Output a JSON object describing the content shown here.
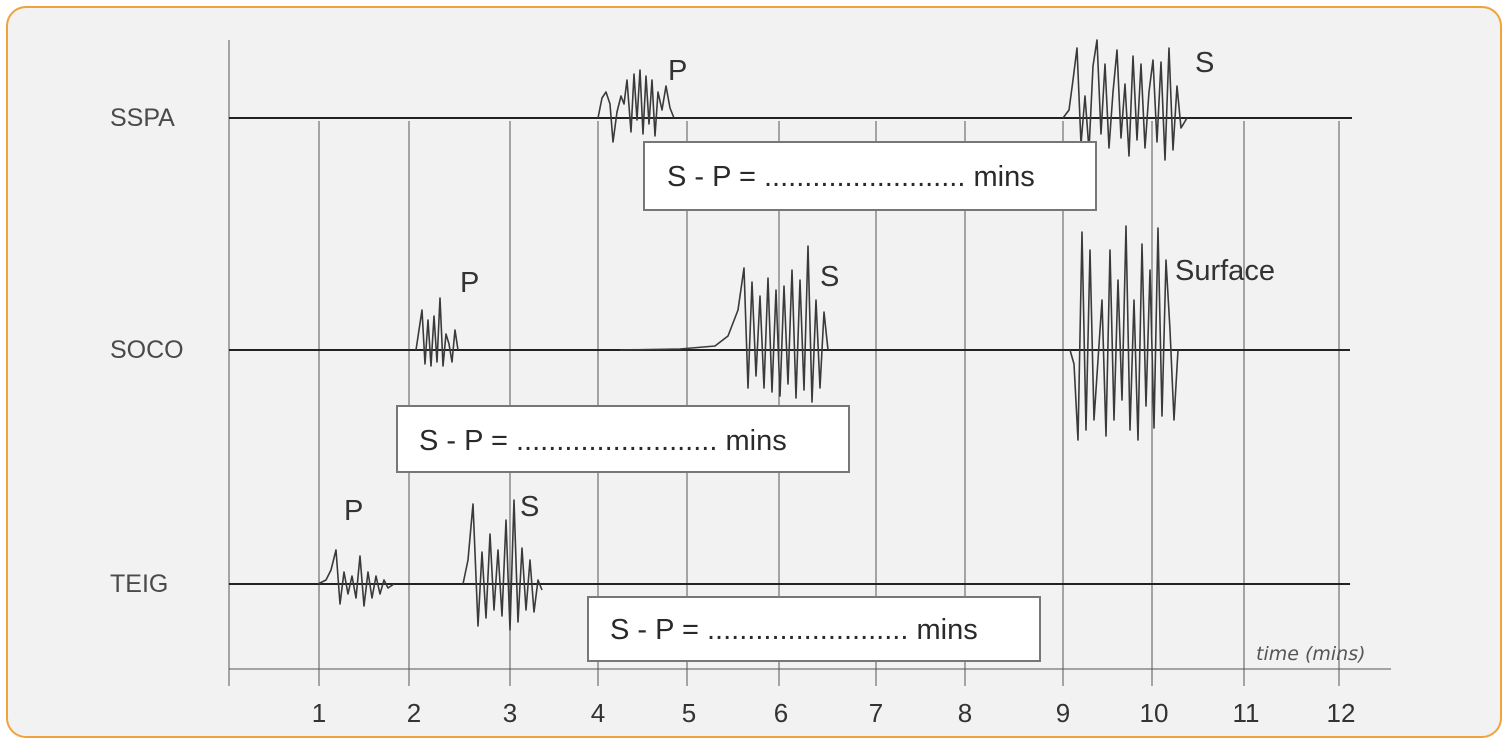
{
  "stations": [
    {
      "id": "sspa",
      "label": "SSPA"
    },
    {
      "id": "soco",
      "label": "SOCO"
    },
    {
      "id": "teig",
      "label": "TEIG"
    }
  ],
  "wave_labels": {
    "sspa_p": "P",
    "sspa_s": "S",
    "soco_p": "P",
    "soco_s": "S",
    "soco_surface": "Surface",
    "teig_p": "P",
    "teig_s": "S"
  },
  "sp_boxes": [
    {
      "id": "sspa",
      "text": "S - P = ......................... mins"
    },
    {
      "id": "soco",
      "text": "S - P = ......................... mins"
    },
    {
      "id": "teig",
      "text": "S - P = ......................... mins"
    }
  ],
  "axis": {
    "title": "time (mins)",
    "ticks": [
      "1",
      "2",
      "3",
      "4",
      "5",
      "6",
      "7",
      "8",
      "9",
      "10",
      "11",
      "12"
    ]
  },
  "colors": {
    "border": "#f0a33a",
    "background": "#f2f2f2",
    "box_fill": "#ffffff"
  }
}
